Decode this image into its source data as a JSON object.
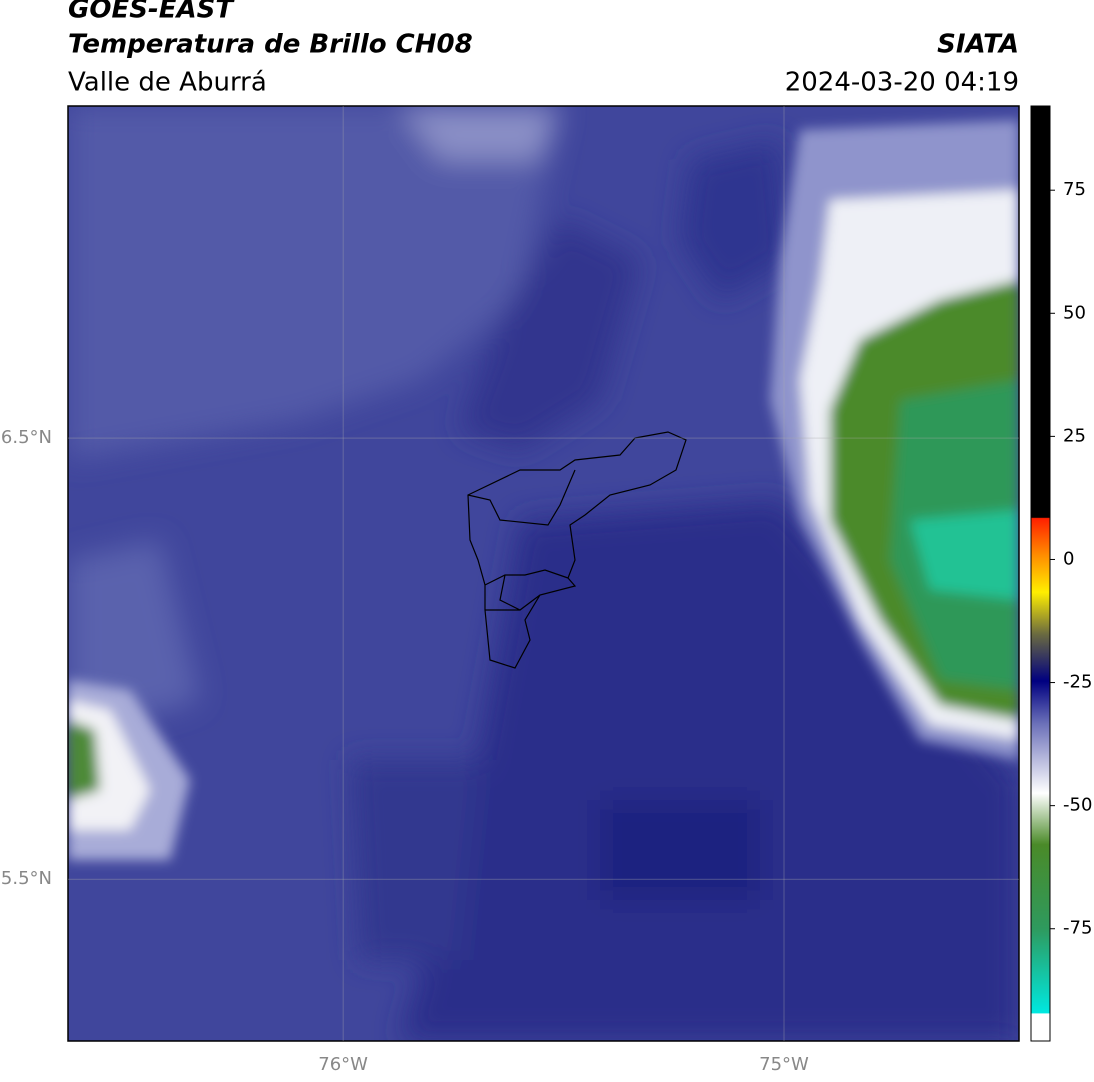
{
  "header": {
    "satellite": "GOES-EAST",
    "product": "Temperatura de Brillo CH08",
    "region": "Valle de Aburrá",
    "source": "SIATA",
    "datetime": "2024-03-20 04:19"
  },
  "map": {
    "xlim": [
      -76.624,
      -74.467
    ],
    "ylim": [
      5.133,
      7.253
    ],
    "xticks": [
      {
        "value": -76,
        "label": "76°W"
      },
      {
        "value": -75,
        "label": "75°W"
      }
    ],
    "yticks": [
      {
        "value": 6.5,
        "label": "6.5°N"
      },
      {
        "value": 5.5,
        "label": "5.5°N"
      }
    ],
    "grid": true
  },
  "colorbar": {
    "lim": [
      -97.8,
      92.1
    ],
    "ticks": [
      75,
      50,
      25,
      0,
      -25,
      -50,
      -75
    ]
  }
}
